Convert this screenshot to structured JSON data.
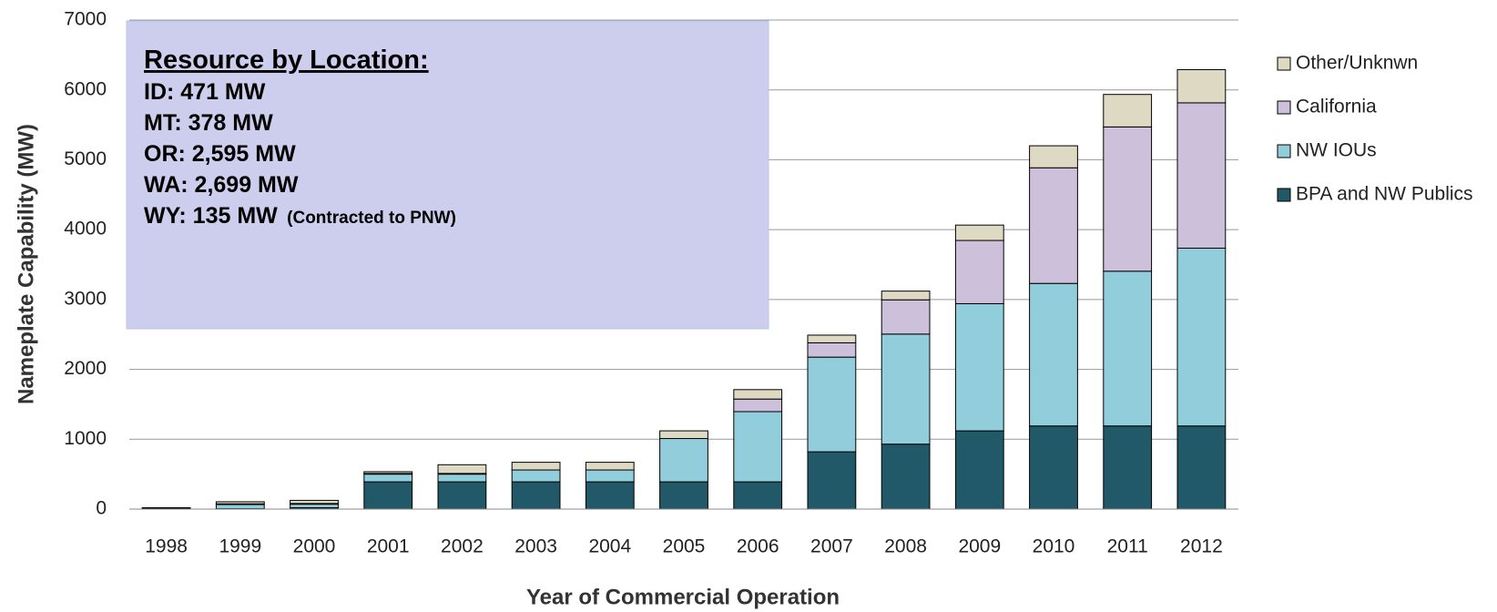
{
  "chart_data": {
    "type": "stacked_bar",
    "ylabel": "Nameplate Capability (MW)",
    "xlabel": "Year of Commercial Operation",
    "categories": [
      "1998",
      "1999",
      "2000",
      "2001",
      "2002",
      "2003",
      "2004",
      "2005",
      "2006",
      "2007",
      "2008",
      "2009",
      "2010",
      "2011",
      "2012"
    ],
    "series": [
      {
        "name": "BPA and NW Publics",
        "color": "#215968",
        "values": [
          0,
          5,
          20,
          390,
          390,
          390,
          390,
          390,
          390,
          820,
          930,
          1120,
          1190,
          1190,
          1190
        ]
      },
      {
        "name": "NW IOUs",
        "color": "#92cddc",
        "values": [
          15,
          60,
          50,
          110,
          110,
          170,
          170,
          620,
          1005,
          1355,
          1575,
          1820,
          2040,
          2215,
          2545
        ]
      },
      {
        "name": "California",
        "color": "#ccc0da",
        "values": [
          0,
          10,
          10,
          10,
          10,
          0,
          0,
          0,
          180,
          205,
          490,
          905,
          1655,
          2065,
          2080
        ]
      },
      {
        "name": "Other/Unknwn",
        "color": "#ddd9c3",
        "values": [
          5,
          30,
          45,
          25,
          125,
          110,
          110,
          110,
          135,
          110,
          125,
          220,
          315,
          465,
          475
        ]
      }
    ],
    "ylim": [
      0,
      7000
    ],
    "yticks": [
      0,
      1000,
      2000,
      3000,
      4000,
      5000,
      6000,
      7000
    ],
    "grid": true,
    "legend": "right",
    "annotation": {
      "title": "Resource by Location:",
      "lines": [
        "ID: 471 MW",
        "MT: 378 MW",
        "OR: 2,595 MW",
        "WA: 2,699 MW",
        "WY: 135 MW"
      ],
      "note": "(Contracted to PNW)"
    }
  }
}
